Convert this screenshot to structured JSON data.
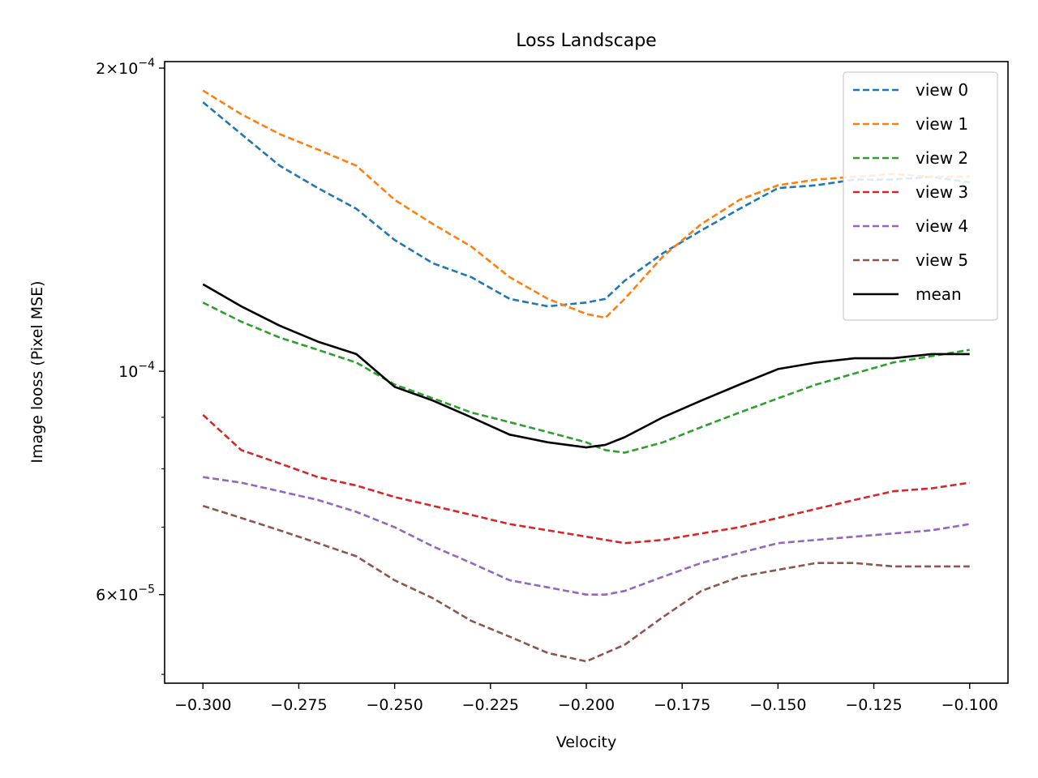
{
  "chart_data": {
    "type": "line",
    "title": "Loss Landscape",
    "xlabel": "Velocity",
    "ylabel": "Image looss (Pixel MSE)",
    "xlim": [
      -0.31,
      -0.09
    ],
    "ylim": [
      4.9e-05,
      0.000203
    ],
    "yscale": "log",
    "grid": false,
    "legend_position": "top-right",
    "x_ticks": [
      -0.3,
      -0.275,
      -0.25,
      -0.225,
      -0.2,
      -0.175,
      -0.15,
      -0.125,
      -0.1
    ],
    "x_tick_labels": [
      "−0.300",
      "−0.275",
      "−0.250",
      "−0.225",
      "−0.200",
      "−0.175",
      "−0.150",
      "−0.125",
      "−0.100"
    ],
    "y_major_ticks": [
      {
        "value": 0.0002,
        "mantissa": "2",
        "exponent": "−4"
      },
      {
        "value": 0.0001,
        "mantissa": "",
        "exponent": "−4"
      },
      {
        "value": 6e-05,
        "mantissa": "6",
        "exponent": "−5"
      }
    ],
    "y_minor_ticks": [
      5e-05,
      7e-05,
      8e-05,
      9e-05
    ],
    "x": [
      -0.3,
      -0.29,
      -0.28,
      -0.27,
      -0.26,
      -0.25,
      -0.24,
      -0.23,
      -0.22,
      -0.21,
      -0.2,
      -0.195,
      -0.19,
      -0.18,
      -0.17,
      -0.16,
      -0.15,
      -0.14,
      -0.13,
      -0.12,
      -0.11,
      -0.1
    ],
    "series": [
      {
        "name": "view 0",
        "color": "#1f77b4",
        "dash": true,
        "values": [
          0.000185,
          0.000172,
          0.00016,
          0.000152,
          0.000145,
          0.000135,
          0.000128,
          0.000124,
          0.000118,
          0.000116,
          0.000117,
          0.000118,
          0.000123,
          0.000131,
          0.000138,
          0.000145,
          0.000152,
          0.000153,
          0.000155,
          0.000155,
          0.000156,
          0.000154
        ]
      },
      {
        "name": "view 1",
        "color": "#ff7f0e",
        "dash": true,
        "values": [
          0.00019,
          0.00018,
          0.000172,
          0.000166,
          0.00016,
          0.000148,
          0.00014,
          0.000133,
          0.000124,
          0.000118,
          0.000114,
          0.000113,
          0.000118,
          0.00013,
          0.00014,
          0.000148,
          0.000153,
          0.000155,
          0.000156,
          0.000157,
          0.000156,
          0.000156
        ]
      },
      {
        "name": "view 2",
        "color": "#2ca02c",
        "dash": true,
        "values": [
          0.000117,
          0.000112,
          0.000108,
          0.000105,
          0.000102,
          9.7e-05,
          9.4e-05,
          9.1e-05,
          8.9e-05,
          8.7e-05,
          8.5e-05,
          8.35e-05,
          8.3e-05,
          8.5e-05,
          8.8e-05,
          9.1e-05,
          9.4e-05,
          9.7e-05,
          9.95e-05,
          0.000102,
          0.0001035,
          0.000105
        ]
      },
      {
        "name": "view 3",
        "color": "#d62728",
        "dash": true,
        "values": [
          9.05e-05,
          8.35e-05,
          8.1e-05,
          7.85e-05,
          7.7e-05,
          7.5e-05,
          7.35e-05,
          7.2e-05,
          7.05e-05,
          6.95e-05,
          6.85e-05,
          6.8e-05,
          6.75e-05,
          6.8e-05,
          6.9e-05,
          7e-05,
          7.15e-05,
          7.3e-05,
          7.45e-05,
          7.6e-05,
          7.65e-05,
          7.75e-05
        ]
      },
      {
        "name": "view 4",
        "color": "#9467bd",
        "dash": true,
        "values": [
          7.85e-05,
          7.75e-05,
          7.6e-05,
          7.45e-05,
          7.25e-05,
          7e-05,
          6.7e-05,
          6.45e-05,
          6.2e-05,
          6.1e-05,
          6e-05,
          6e-05,
          6.05e-05,
          6.25e-05,
          6.45e-05,
          6.6e-05,
          6.75e-05,
          6.8e-05,
          6.85e-05,
          6.9e-05,
          6.95e-05,
          7.05e-05
        ]
      },
      {
        "name": "view 5",
        "color": "#8c564b",
        "dash": true,
        "values": [
          7.35e-05,
          7.15e-05,
          6.95e-05,
          6.75e-05,
          6.55e-05,
          6.2e-05,
          5.95e-05,
          5.65e-05,
          5.45e-05,
          5.25e-05,
          5.15e-05,
          5.25e-05,
          5.35e-05,
          5.7e-05,
          6.05e-05,
          6.25e-05,
          6.35e-05,
          6.45e-05,
          6.45e-05,
          6.4e-05,
          6.4e-05,
          6.4e-05
        ]
      },
      {
        "name": "mean",
        "color": "#000000",
        "dash": false,
        "values": [
          0.000122,
          0.000116,
          0.000111,
          0.000107,
          0.000104,
          9.65e-05,
          9.35e-05,
          9e-05,
          8.65e-05,
          8.5e-05,
          8.4e-05,
          8.45e-05,
          8.6e-05,
          9e-05,
          9.35e-05,
          9.7e-05,
          0.0001005,
          0.000102,
          0.000103,
          0.000103,
          0.000104,
          0.000104
        ]
      }
    ]
  }
}
